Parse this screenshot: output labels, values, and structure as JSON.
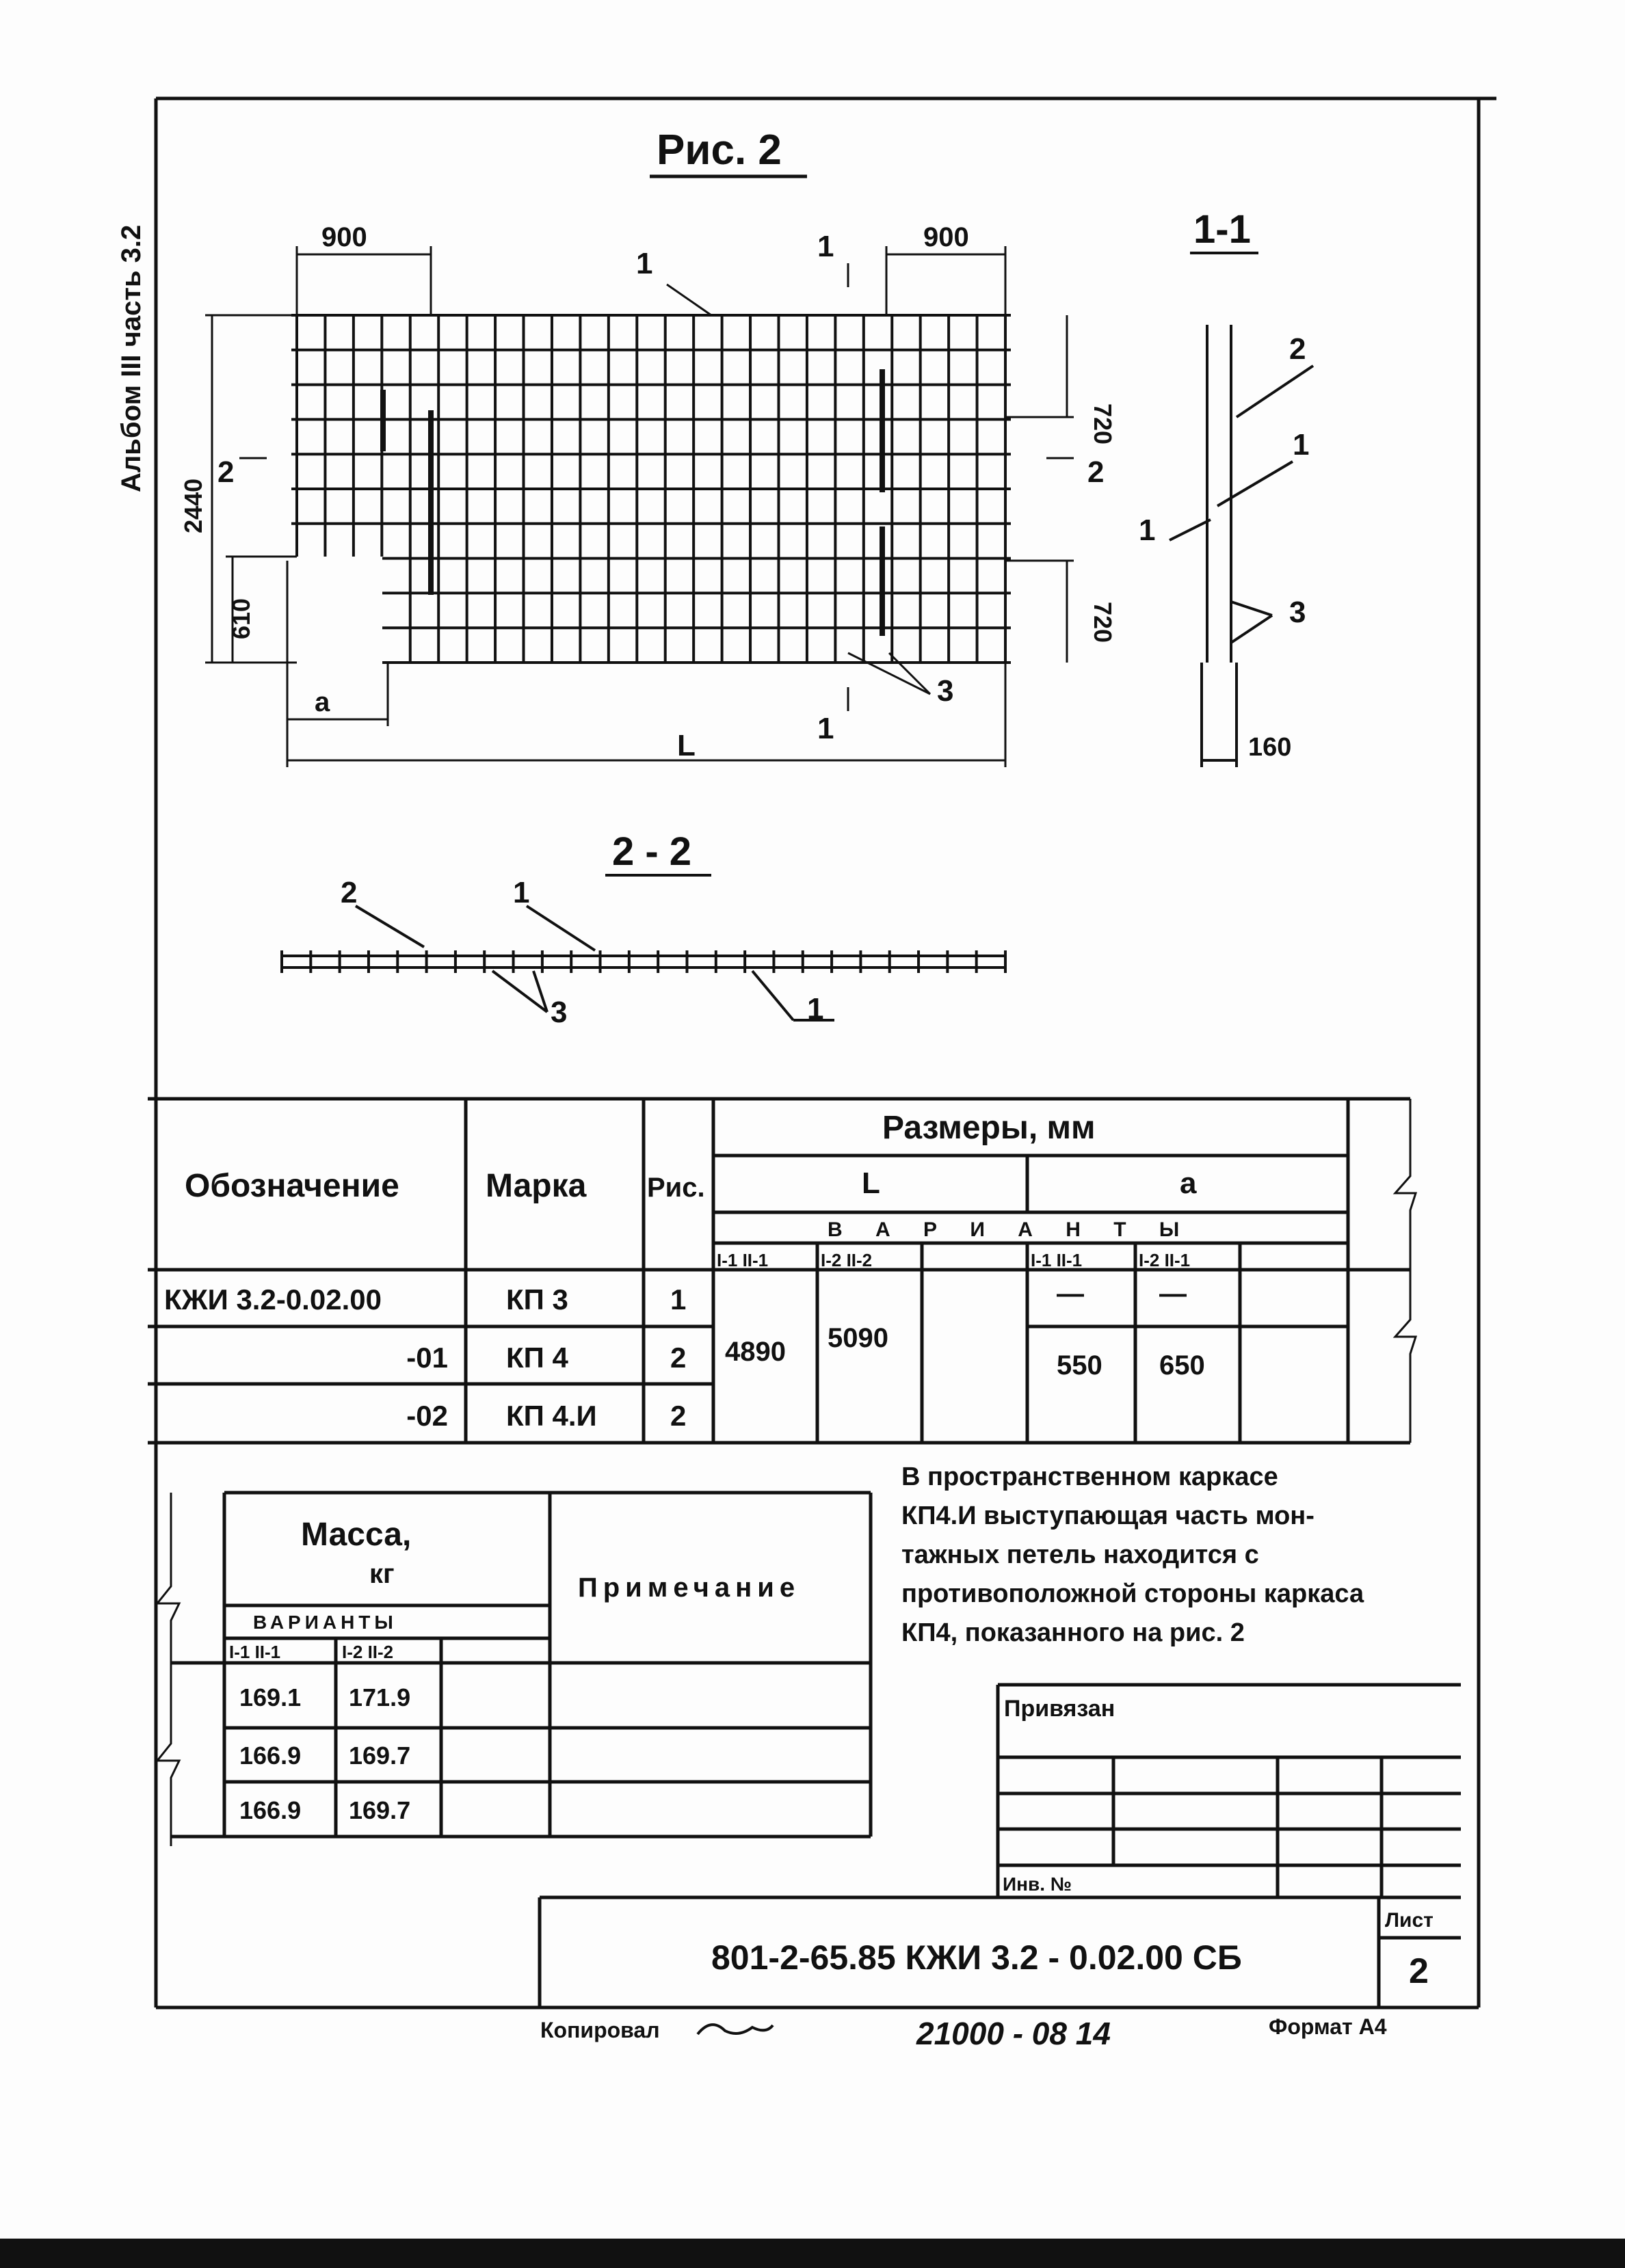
{
  "side_label": "Альбом III  часть 3.2",
  "figure": {
    "title": "Рис. 2",
    "dims": {
      "top_left": "900",
      "top_right": "900",
      "height": "2440",
      "right_top": "720",
      "right_bottom": "720",
      "left_bottom": "610",
      "a": "a",
      "L": "L"
    },
    "callouts": {
      "c1": "1",
      "c3": "3",
      "cut1_top": "1",
      "cut1_bottom": "1",
      "cut2_left": "2",
      "cut2_right": "2"
    },
    "section_1_1": {
      "title": "1-1",
      "c2": "2",
      "c1a": "1",
      "c1b": "1",
      "c3": "3",
      "dim": "160"
    },
    "section_2_2": {
      "title": "2 - 2",
      "c2": "2",
      "c1a": "1",
      "c3": "3",
      "c1b": "1"
    }
  },
  "table1": {
    "headers": {
      "designation": "Обозначение",
      "mark": "Марка",
      "fig": "Рис.",
      "sizes": "Размеры, мм",
      "L": "L",
      "a": "a",
      "variants": "В А Р И А Н Т Ы",
      "sub": [
        "I-1 II-1",
        "I-2 II-2",
        "",
        "I-1 II-1",
        "I-2 II-1",
        ""
      ]
    },
    "rows": [
      {
        "designation": "КЖИ 3.2-0.02.00",
        "mark": "КП 3",
        "fig": "1",
        "a1": "—",
        "a2": "—"
      },
      {
        "designation": "-01",
        "mark": "КП 4",
        "fig": "2",
        "a1": "550",
        "a2": "650"
      },
      {
        "designation": "-02",
        "mark": "КП 4.И",
        "fig": "2"
      }
    ],
    "L_values": [
      "4890",
      "5090"
    ]
  },
  "table2": {
    "mass": "Масса,",
    "unit": "кг",
    "note": "Примечание",
    "variants": "ВАРИАНТЫ",
    "sub": [
      "I-1 II-1",
      "I-2 II-2"
    ],
    "rows": [
      [
        "169.1",
        "171.9"
      ],
      [
        "166.9",
        "169.7"
      ],
      [
        "166.9",
        "169.7"
      ]
    ]
  },
  "note_text": [
    "В пространственном каркасе",
    "КП4.И выступающая часть мон-",
    "тажных петель находится с",
    "противоположной стороны каркаса",
    "КП4, показанного на рис. 2"
  ],
  "binding": {
    "label": "Привязан",
    "inv": "Инв. №"
  },
  "title_block": {
    "code": "801-2-65.85 КЖИ 3.2 - 0.02.00 СБ",
    "sheet_label": "Лист",
    "sheet": "2"
  },
  "footer": {
    "copied": "Копировал",
    "number": "21000 - 08  14",
    "format": "Формат А4"
  }
}
